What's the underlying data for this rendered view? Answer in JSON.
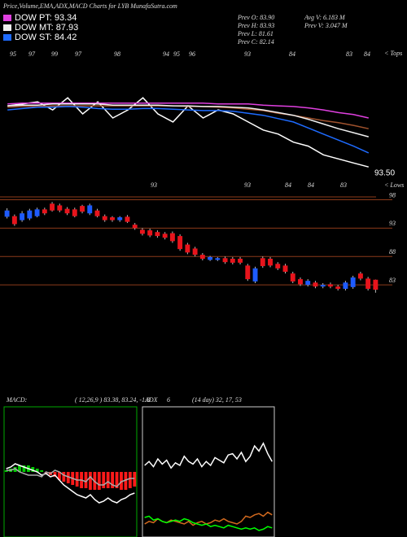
{
  "chart_data": [
    {
      "type": "line",
      "title": "Price,Volume,EMA,ADX,MACD Charts for LYB MunafaSutra.com",
      "stats": [
        "Prev  O: 83.90",
        "Prev  H: 83.93",
        "Prev  L: 81.61",
        "Prev  C: 82.14",
        "Avg V: 6.183 M",
        "Prev  V: 3.047 M"
      ],
      "price_label": "93.50",
      "tops_label": "< Tops",
      "lows_label": "< Lows",
      "top_labels": [
        "95",
        "97",
        "99",
        "97",
        "98",
        "94",
        "95",
        "96",
        "93",
        "84",
        "83",
        "84"
      ],
      "low_labels": [
        "93",
        "93",
        "84",
        "84",
        "83"
      ],
      "ylim": [
        80,
        100
      ],
      "series": [
        {
          "color": "#ffffff",
          "values": [
            91.5,
            91.8,
            92.1,
            90.9,
            92.7,
            90.3,
            92.1,
            89.7,
            90.9,
            92.7,
            90.3,
            89.1,
            91.5,
            89.7,
            90.9,
            90.3,
            89.1,
            87.9,
            87.3,
            86.1,
            85.5,
            84.2,
            83.6,
            83.0,
            82.4
          ]
        },
        {
          "color": "#a0522d",
          "values": [
            91.3,
            91.4,
            91.4,
            91.5,
            91.5,
            91.5,
            91.5,
            91.5,
            91.5,
            91.5,
            91.5,
            91.5,
            91.4,
            91.4,
            91.3,
            91.2,
            91.0,
            90.8,
            90.4,
            90.1,
            89.7,
            89.3,
            89.0,
            88.6,
            88.1
          ]
        },
        {
          "name": "DOW PT: 93.34",
          "color": "#e040e0",
          "values": [
            91.8,
            91.9,
            91.9,
            91.9,
            91.9,
            91.9,
            91.9,
            91.9,
            91.9,
            91.9,
            91.9,
            91.9,
            91.9,
            91.9,
            91.8,
            91.8,
            91.8,
            91.6,
            91.5,
            91.4,
            91.2,
            90.9,
            90.5,
            90.2,
            89.7
          ]
        },
        {
          "name": "DOW MT: 87.93",
          "color": "#f0f0f0",
          "values": [
            91.5,
            91.6,
            91.6,
            91.8,
            91.8,
            91.8,
            91.8,
            91.6,
            91.6,
            91.6,
            91.6,
            91.5,
            91.5,
            91.4,
            91.4,
            91.3,
            91.2,
            90.9,
            90.5,
            90.1,
            89.5,
            88.8,
            88.1,
            87.5,
            86.9
          ]
        },
        {
          "name": "DOW ST: 84.42",
          "color": "#1e6bff",
          "values": [
            90.9,
            91.1,
            91.3,
            91.3,
            91.4,
            91.3,
            91.1,
            91.0,
            91.0,
            91.1,
            91.1,
            91.0,
            90.9,
            90.8,
            90.8,
            90.7,
            90.4,
            90.1,
            89.6,
            89.1,
            88.2,
            87.3,
            86.4,
            85.5,
            84.5
          ]
        }
      ]
    },
    {
      "type": "candlestick",
      "up_color": "#1e5bff",
      "down_color": "#e8141c",
      "grid_color": "#8b3a1a",
      "ylim": [
        80,
        99.5
      ],
      "yticks": [
        83,
        88,
        93,
        98
      ],
      "grid": true,
      "open": [
        95.0,
        95.1,
        94.4,
        94.7,
        95.1,
        96.3,
        97.3,
        97.0,
        96.4,
        96.3,
        96.9,
        95.6,
        96.1,
        95.1,
        94.9,
        94.4,
        95.0,
        93.6,
        92.7,
        92.6,
        92.3,
        92.0,
        92.1,
        91.6,
        90.1,
        89.4,
        88.3,
        87.4,
        87.4,
        87.7,
        87.6,
        87.6,
        86.4,
        83.6,
        87.7,
        87.6,
        86.7,
        86.4,
        85.0,
        84.0,
        83.0,
        83.4,
        82.7,
        83.1,
        82.7,
        82.3,
        82.6,
        85.0,
        84.1,
        83.9
      ],
      "high": [
        96.5,
        95.4,
        96.0,
        96.4,
        96.6,
        96.6,
        97.6,
        97.3,
        96.7,
        96.6,
        97.1,
        97.3,
        96.4,
        95.4,
        95.1,
        95.1,
        95.3,
        93.9,
        93.0,
        92.9,
        92.6,
        92.3,
        92.4,
        91.9,
        90.4,
        89.7,
        88.6,
        88.1,
        87.9,
        88.0,
        87.9,
        87.9,
        86.7,
        86.2,
        88.0,
        87.9,
        87.0,
        86.7,
        85.3,
        84.3,
        84.0,
        83.7,
        83.3,
        83.4,
        83.0,
        83.7,
        84.6,
        85.3,
        84.4,
        83.93
      ],
      "low": [
        94.7,
        93.4,
        94.1,
        94.4,
        94.9,
        95.3,
        95.9,
        95.8,
        95.3,
        94.9,
        95.6,
        95.3,
        94.9,
        94.1,
        94.1,
        94.1,
        93.9,
        92.7,
        91.7,
        91.4,
        91.3,
        91.0,
        90.4,
        89.0,
        88.4,
        88.0,
        87.3,
        87.2,
        87.2,
        86.7,
        86.6,
        86.6,
        83.7,
        83.3,
        86.0,
        86.1,
        85.6,
        85.0,
        83.3,
        82.8,
        82.7,
        82.4,
        82.4,
        82.4,
        82.0,
        82.0,
        82.3,
        83.8,
        82.0,
        81.61
      ],
      "close": [
        96.1,
        93.7,
        95.6,
        96.1,
        96.3,
        95.6,
        96.1,
        96.1,
        95.6,
        95.1,
        95.9,
        97.0,
        95.1,
        94.4,
        94.4,
        94.9,
        94.1,
        93.0,
        92.0,
        91.7,
        91.6,
        91.3,
        90.7,
        89.3,
        88.7,
        88.3,
        87.6,
        87.9,
        87.7,
        87.0,
        86.9,
        86.9,
        84.0,
        85.9,
        86.3,
        86.4,
        85.9,
        85.3,
        83.6,
        83.1,
        83.7,
        82.7,
        83.0,
        82.7,
        82.3,
        83.4,
        84.3,
        84.1,
        82.3,
        82.14
      ]
    },
    {
      "type": "macd",
      "title": "MACD:",
      "params": "( 12,26,9 ) 83.38, 83.24, -1.8",
      "up_color": "#00cc00",
      "down_color": "#ff1a1a",
      "border": "#00aa00",
      "ylim": [
        -4,
        4
      ],
      "values": [
        0.1,
        0.2,
        0.3,
        0.4,
        0.4,
        0.4,
        0.3,
        0.2,
        0.1,
        -0.1,
        -0.2,
        -0.3,
        -0.5,
        -0.6,
        -0.7,
        -0.8,
        -0.9,
        -1.0,
        -1.0,
        -1.1,
        -1.1,
        -1.1,
        -1.0,
        -1.0,
        -1.0,
        -1.0,
        -1.1,
        -1.1,
        -1.0,
        -0.9
      ],
      "series": [
        {
          "color": "#ffffff",
          "values": [
            0.2,
            0.3,
            0.5,
            0.4,
            0.3,
            0.2,
            0.1,
            0.0,
            -0.2,
            -0.1,
            -0.3,
            -0.2,
            -0.5,
            -0.8,
            -1.0,
            -1.2,
            -1.4,
            -1.5,
            -1.6,
            -1.4,
            -1.7,
            -1.9,
            -1.8,
            -1.6,
            -1.8,
            -1.9,
            -1.7,
            -1.6,
            -1.4,
            -1.3
          ]
        },
        {
          "color": "#aaaaaa",
          "values": [
            0.1,
            0.1,
            0.2,
            0.0,
            -0.1,
            -0.2,
            -0.2,
            -0.2,
            -0.3,
            -0.0,
            -0.1,
            0.1,
            0.0,
            -0.2,
            -0.3,
            -0.4,
            -0.5,
            -0.5,
            -0.6,
            -0.3,
            -0.6,
            -0.8,
            -0.8,
            -0.6,
            -0.8,
            -0.9,
            -0.6,
            -0.5,
            -0.4,
            -0.4
          ]
        }
      ]
    },
    {
      "type": "line",
      "title": "ADX",
      "period": "6",
      "params": "(14 day) 32, 17, 53",
      "border": "#cccccc",
      "ylim": [
        0,
        100
      ],
      "series": [
        {
          "color": "#ffffff",
          "values": [
            55,
            58,
            54,
            60,
            56,
            59,
            53,
            57,
            55,
            62,
            58,
            56,
            60,
            54,
            58,
            55,
            61,
            59,
            57,
            63,
            64,
            60,
            65,
            58,
            62,
            70,
            66,
            72,
            64,
            58
          ]
        },
        {
          "color": "#d2691e",
          "values": [
            10,
            12,
            11,
            14,
            12,
            11,
            13,
            12,
            11,
            10,
            12,
            9,
            11,
            12,
            10,
            11,
            13,
            12,
            14,
            12,
            11,
            10,
            12,
            16,
            15,
            17,
            18,
            16,
            19,
            17
          ]
        },
        {
          "color": "#00ff00",
          "values": [
            15,
            16,
            13,
            14,
            12,
            11,
            12,
            13,
            12,
            14,
            13,
            11,
            10,
            9,
            10,
            8,
            9,
            8,
            7,
            9,
            8,
            7,
            6,
            7,
            6,
            7,
            5,
            6,
            8,
            7
          ]
        }
      ]
    }
  ]
}
